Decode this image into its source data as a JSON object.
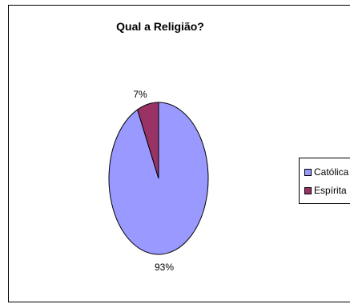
{
  "chart_data": {
    "type": "pie",
    "title": "Qual a Religião?",
    "categories": [
      "Católica",
      "Espírita"
    ],
    "values": [
      93,
      7
    ],
    "value_labels": [
      "93%",
      "7%"
    ],
    "colors": [
      "#9999FF",
      "#993366"
    ],
    "legend_position": "right"
  }
}
